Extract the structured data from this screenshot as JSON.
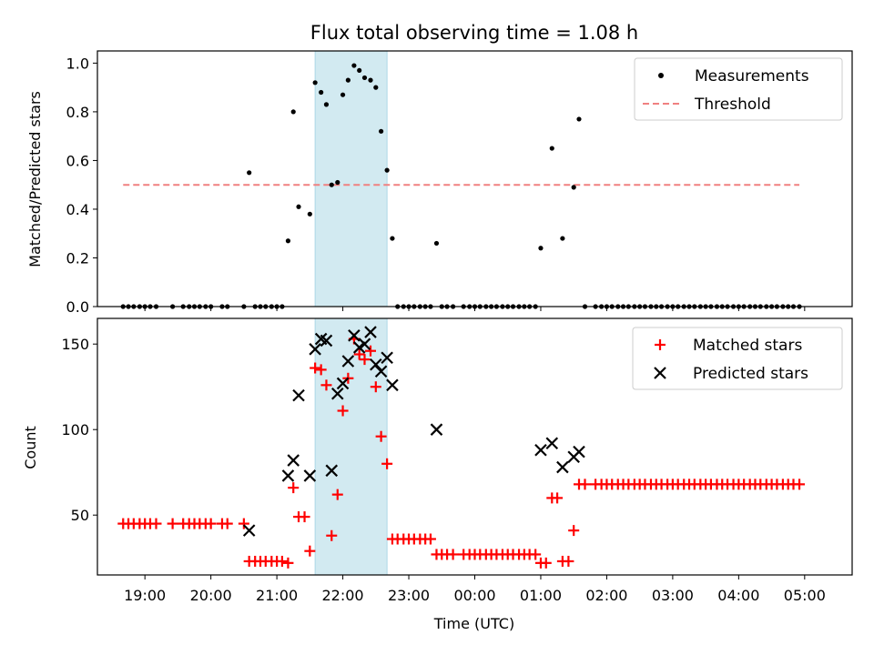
{
  "chart_data": [
    {
      "type": "scatter",
      "title": "Flux total observing time = 1.08 h",
      "ylabel": "Matched/Predicted stars",
      "xlabel": "",
      "x_unit": "hours since 18:00 UTC",
      "xlim": [
        0.28,
        11.72
      ],
      "ylim": [
        0.0,
        1.05
      ],
      "yticks": [
        0.0,
        0.2,
        0.4,
        0.6,
        0.8,
        1.0
      ],
      "yticklabels": [
        "0.0",
        "0.2",
        "0.4",
        "0.6",
        "0.8",
        "1.0"
      ],
      "highlight_span": [
        3.58,
        4.67
      ],
      "highlight_color": "#add8e6",
      "threshold": {
        "name": "Threshold",
        "value": 0.5,
        "x_range": [
          0.67,
          10.92
        ],
        "color": "#f08080"
      },
      "legend": {
        "placement": "top-right",
        "entries": [
          "Measurements",
          "Threshold"
        ]
      },
      "series": [
        {
          "name": "Measurements",
          "color": "#000000",
          "marker": "dot",
          "points": [
            [
              0.67,
              0
            ],
            [
              0.75,
              0
            ],
            [
              0.83,
              0
            ],
            [
              0.92,
              0
            ],
            [
              1.0,
              0
            ],
            [
              1.08,
              0
            ],
            [
              1.17,
              0
            ],
            [
              1.42,
              0
            ],
            [
              1.58,
              0
            ],
            [
              1.67,
              0
            ],
            [
              1.75,
              0
            ],
            [
              1.83,
              0
            ],
            [
              1.92,
              0
            ],
            [
              2.0,
              0
            ],
            [
              2.17,
              0
            ],
            [
              2.25,
              0
            ],
            [
              2.5,
              0
            ],
            [
              2.58,
              0.55
            ],
            [
              2.67,
              0
            ],
            [
              2.75,
              0
            ],
            [
              2.83,
              0
            ],
            [
              2.92,
              0
            ],
            [
              3.0,
              0
            ],
            [
              3.08,
              0
            ],
            [
              3.17,
              0.27
            ],
            [
              3.25,
              0.8
            ],
            [
              3.33,
              0.41
            ],
            [
              3.5,
              0.38
            ],
            [
              3.58,
              0.92
            ],
            [
              3.67,
              0.88
            ],
            [
              3.75,
              0.83
            ],
            [
              3.83,
              0.5
            ],
            [
              3.92,
              0.51
            ],
            [
              4.0,
              0.87
            ],
            [
              4.08,
              0.93
            ],
            [
              4.17,
              0.99
            ],
            [
              4.25,
              0.97
            ],
            [
              4.33,
              0.94
            ],
            [
              4.42,
              0.93
            ],
            [
              4.5,
              0.9
            ],
            [
              4.58,
              0.72
            ],
            [
              4.67,
              0.56
            ],
            [
              4.75,
              0.28
            ],
            [
              4.83,
              0
            ],
            [
              4.92,
              0
            ],
            [
              5.0,
              0
            ],
            [
              5.08,
              0
            ],
            [
              5.17,
              0
            ],
            [
              5.25,
              0
            ],
            [
              5.33,
              0
            ],
            [
              5.42,
              0.26
            ],
            [
              5.5,
              0
            ],
            [
              5.58,
              0
            ],
            [
              5.67,
              0
            ],
            [
              5.83,
              0
            ],
            [
              5.92,
              0
            ],
            [
              6.0,
              0
            ],
            [
              6.08,
              0
            ],
            [
              6.17,
              0
            ],
            [
              6.25,
              0
            ],
            [
              6.33,
              0
            ],
            [
              6.42,
              0
            ],
            [
              6.5,
              0
            ],
            [
              6.58,
              0
            ],
            [
              6.67,
              0
            ],
            [
              6.75,
              0
            ],
            [
              6.83,
              0
            ],
            [
              6.92,
              0
            ],
            [
              7.0,
              0.24
            ],
            [
              7.17,
              0.65
            ],
            [
              7.33,
              0.28
            ],
            [
              7.5,
              0.49
            ],
            [
              7.58,
              0.77
            ],
            [
              7.67,
              0
            ],
            [
              7.83,
              0
            ],
            [
              7.92,
              0
            ],
            [
              8.0,
              0
            ],
            [
              8.08,
              0
            ],
            [
              8.17,
              0
            ],
            [
              8.25,
              0
            ],
            [
              8.33,
              0
            ],
            [
              8.42,
              0
            ],
            [
              8.5,
              0
            ],
            [
              8.58,
              0
            ],
            [
              8.67,
              0
            ],
            [
              8.75,
              0
            ],
            [
              8.83,
              0
            ],
            [
              8.92,
              0
            ],
            [
              9.0,
              0
            ],
            [
              9.08,
              0
            ],
            [
              9.17,
              0
            ],
            [
              9.25,
              0
            ],
            [
              9.33,
              0
            ],
            [
              9.42,
              0
            ],
            [
              9.5,
              0
            ],
            [
              9.58,
              0
            ],
            [
              9.67,
              0
            ],
            [
              9.75,
              0
            ],
            [
              9.83,
              0
            ],
            [
              9.92,
              0
            ],
            [
              10.0,
              0
            ],
            [
              10.08,
              0
            ],
            [
              10.17,
              0
            ],
            [
              10.25,
              0
            ],
            [
              10.33,
              0
            ],
            [
              10.42,
              0
            ],
            [
              10.5,
              0
            ],
            [
              10.58,
              0
            ],
            [
              10.67,
              0
            ],
            [
              10.75,
              0
            ],
            [
              10.83,
              0
            ],
            [
              10.92,
              0
            ]
          ]
        }
      ]
    },
    {
      "type": "scatter",
      "title": "",
      "ylabel": "Count",
      "xlabel": "Time (UTC)",
      "x_unit": "hours since 18:00 UTC",
      "xlim": [
        0.28,
        11.72
      ],
      "ylim": [
        15,
        165
      ],
      "yticks": [
        50,
        100,
        150
      ],
      "yticklabels": [
        "50",
        "100",
        "150"
      ],
      "xticks": [
        1,
        2,
        3,
        4,
        5,
        6,
        7,
        8,
        9,
        10,
        11
      ],
      "xticklabels": [
        "19:00",
        "20:00",
        "21:00",
        "22:00",
        "23:00",
        "00:00",
        "01:00",
        "02:00",
        "03:00",
        "04:00",
        "05:00"
      ],
      "highlight_span": [
        3.58,
        4.67
      ],
      "highlight_color": "#add8e6",
      "legend": {
        "placement": "top-right",
        "entries": [
          "Matched stars",
          "Predicted stars"
        ]
      },
      "series": [
        {
          "name": "Matched stars",
          "color": "#ff0000",
          "marker": "plus",
          "points": [
            [
              0.67,
              45
            ],
            [
              0.75,
              45
            ],
            [
              0.83,
              45
            ],
            [
              0.92,
              45
            ],
            [
              1.0,
              45
            ],
            [
              1.08,
              45
            ],
            [
              1.17,
              45
            ],
            [
              1.42,
              45
            ],
            [
              1.58,
              45
            ],
            [
              1.67,
              45
            ],
            [
              1.75,
              45
            ],
            [
              1.83,
              45
            ],
            [
              1.92,
              45
            ],
            [
              2.0,
              45
            ],
            [
              2.17,
              45
            ],
            [
              2.25,
              45
            ],
            [
              2.5,
              45
            ],
            [
              2.58,
              23
            ],
            [
              2.67,
              23
            ],
            [
              2.75,
              23
            ],
            [
              2.83,
              23
            ],
            [
              2.92,
              23
            ],
            [
              3.0,
              23
            ],
            [
              3.08,
              23
            ],
            [
              3.17,
              22
            ],
            [
              3.25,
              66
            ],
            [
              3.33,
              49
            ],
            [
              3.42,
              49
            ],
            [
              3.5,
              29
            ],
            [
              3.58,
              136
            ],
            [
              3.67,
              135
            ],
            [
              3.75,
              126
            ],
            [
              3.83,
              38
            ],
            [
              3.92,
              62
            ],
            [
              4.0,
              111
            ],
            [
              4.08,
              130
            ],
            [
              4.17,
              153
            ],
            [
              4.25,
              144
            ],
            [
              4.33,
              141
            ],
            [
              4.42,
              146
            ],
            [
              4.5,
              125
            ],
            [
              4.58,
              96
            ],
            [
              4.67,
              80
            ],
            [
              4.75,
              36
            ],
            [
              4.83,
              36
            ],
            [
              4.92,
              36
            ],
            [
              5.0,
              36
            ],
            [
              5.08,
              36
            ],
            [
              5.17,
              36
            ],
            [
              5.25,
              36
            ],
            [
              5.33,
              36
            ],
            [
              5.42,
              27
            ],
            [
              5.5,
              27
            ],
            [
              5.58,
              27
            ],
            [
              5.67,
              27
            ],
            [
              5.83,
              27
            ],
            [
              5.92,
              27
            ],
            [
              6.0,
              27
            ],
            [
              6.08,
              27
            ],
            [
              6.17,
              27
            ],
            [
              6.25,
              27
            ],
            [
              6.33,
              27
            ],
            [
              6.42,
              27
            ],
            [
              6.5,
              27
            ],
            [
              6.58,
              27
            ],
            [
              6.67,
              27
            ],
            [
              6.75,
              27
            ],
            [
              6.83,
              27
            ],
            [
              6.92,
              27
            ],
            [
              7.0,
              22
            ],
            [
              7.08,
              22
            ],
            [
              7.17,
              60
            ],
            [
              7.25,
              60
            ],
            [
              7.33,
              23
            ],
            [
              7.42,
              23
            ],
            [
              7.5,
              41
            ],
            [
              7.58,
              68
            ],
            [
              7.67,
              68
            ],
            [
              7.83,
              68
            ],
            [
              7.92,
              68
            ],
            [
              8.0,
              68
            ],
            [
              8.08,
              68
            ],
            [
              8.17,
              68
            ],
            [
              8.25,
              68
            ],
            [
              8.33,
              68
            ],
            [
              8.42,
              68
            ],
            [
              8.5,
              68
            ],
            [
              8.58,
              68
            ],
            [
              8.67,
              68
            ],
            [
              8.75,
              68
            ],
            [
              8.83,
              68
            ],
            [
              8.92,
              68
            ],
            [
              9.0,
              68
            ],
            [
              9.08,
              68
            ],
            [
              9.17,
              68
            ],
            [
              9.25,
              68
            ],
            [
              9.33,
              68
            ],
            [
              9.42,
              68
            ],
            [
              9.5,
              68
            ],
            [
              9.58,
              68
            ],
            [
              9.67,
              68
            ],
            [
              9.75,
              68
            ],
            [
              9.83,
              68
            ],
            [
              9.92,
              68
            ],
            [
              10.0,
              68
            ],
            [
              10.08,
              68
            ],
            [
              10.17,
              68
            ],
            [
              10.25,
              68
            ],
            [
              10.33,
              68
            ],
            [
              10.42,
              68
            ],
            [
              10.5,
              68
            ],
            [
              10.58,
              68
            ],
            [
              10.67,
              68
            ],
            [
              10.75,
              68
            ],
            [
              10.83,
              68
            ],
            [
              10.92,
              68
            ]
          ]
        },
        {
          "name": "Predicted stars",
          "color": "#000000",
          "marker": "x",
          "points": [
            [
              2.58,
              41
            ],
            [
              3.17,
              73
            ],
            [
              3.25,
              82
            ],
            [
              3.33,
              120
            ],
            [
              3.5,
              73
            ],
            [
              3.58,
              147
            ],
            [
              3.67,
              153
            ],
            [
              3.75,
              152
            ],
            [
              3.83,
              76
            ],
            [
              3.92,
              121
            ],
            [
              4.0,
              127
            ],
            [
              4.08,
              140
            ],
            [
              4.17,
              155
            ],
            [
              4.25,
              148
            ],
            [
              4.33,
              150
            ],
            [
              4.42,
              157
            ],
            [
              4.5,
              138
            ],
            [
              4.58,
              134
            ],
            [
              4.67,
              142
            ],
            [
              4.75,
              126
            ],
            [
              5.42,
              100
            ],
            [
              7.0,
              88
            ],
            [
              7.17,
              92
            ],
            [
              7.33,
              78
            ],
            [
              7.5,
              84
            ],
            [
              7.58,
              87
            ]
          ]
        }
      ]
    }
  ]
}
